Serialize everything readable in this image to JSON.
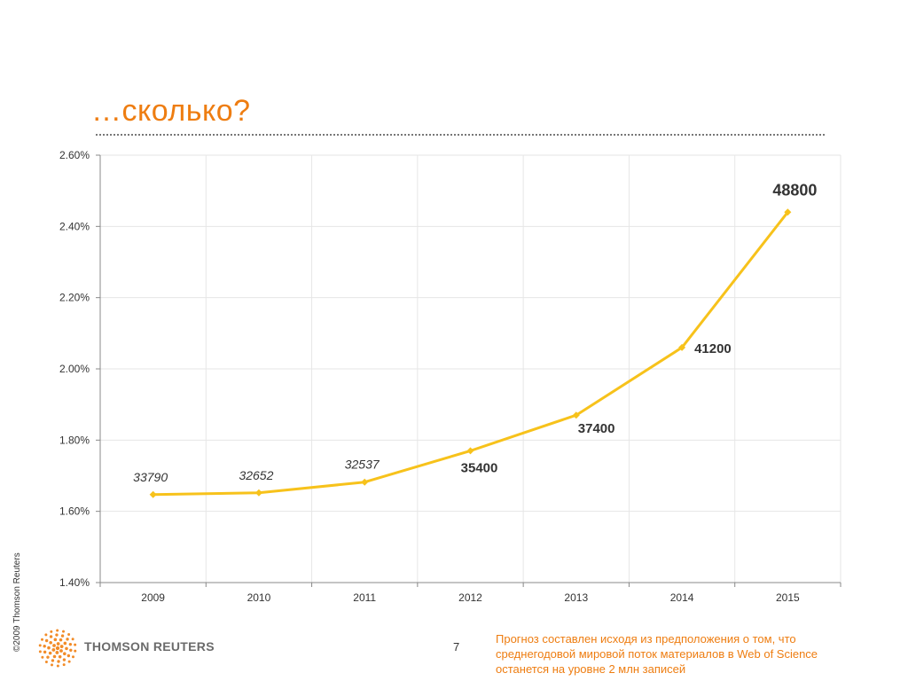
{
  "slide": {
    "title": "…сколько?",
    "copyright": "©2009 Thomson Reuters",
    "brand": "THOMSON REUTERS",
    "page_number": "7",
    "footnote": "Прогноз составлен исходя из предположения о том, что среднегодовой мировой поток материалов в Web of Science останется на уровне 2 млн записей"
  },
  "colors": {
    "accent": "#ee7d11",
    "line": "#f7c21b",
    "grid": "#e6e6e6",
    "logo": "#f28c28"
  },
  "icons": {
    "logo": "thomson-reuters-dot-sphere-logo"
  },
  "chart_data": {
    "type": "line",
    "categories": [
      "2009",
      "2010",
      "2011",
      "2012",
      "2013",
      "2014",
      "2015"
    ],
    "values": [
      1.647,
      1.652,
      1.682,
      1.77,
      1.87,
      2.06,
      2.44
    ],
    "data_labels": [
      "33790",
      "32652",
      "32537",
      "35400",
      "37400",
      "41200",
      "48800"
    ],
    "y_ticks": [
      "1.40%",
      "1.60%",
      "1.80%",
      "2.00%",
      "2.20%",
      "2.40%",
      "2.60%"
    ],
    "ylim": [
      1.4,
      2.6
    ],
    "grid": true,
    "legend": "none"
  }
}
